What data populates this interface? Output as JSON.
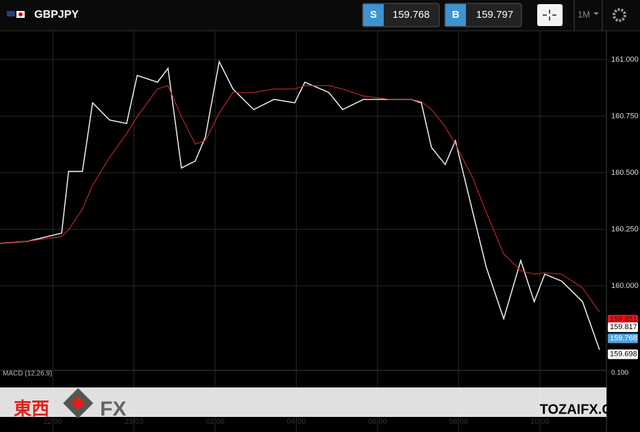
{
  "header": {
    "symbol": "GBPJPY",
    "sell_label": "S",
    "sell_price": "159.768",
    "buy_label": "B",
    "buy_price": "159.797",
    "timeframe": "1M"
  },
  "chart_data": {
    "type": "line",
    "x": [
      -1.3,
      -0.62,
      0.22,
      0.39,
      0.73,
      0.98,
      1.4,
      1.82,
      2.08,
      2.58,
      2.84,
      3.17,
      3.51,
      3.76,
      4.1,
      4.44,
      4.95,
      5.45,
      5.96,
      6.21,
      6.8,
      7.14,
      7.65,
      8.32,
      8.83,
      9.08,
      9.33,
      9.67,
      9.92,
      10.35,
      10.68,
      11.11,
      11.53,
      11.86,
      12.12,
      12.54,
      13.05,
      13.47
    ],
    "series": [
      {
        "name": "GBPJPY",
        "color": "#e8e8e8",
        "values": [
          160.188,
          160.197,
          160.233,
          160.506,
          160.506,
          160.809,
          160.733,
          160.718,
          160.93,
          160.9,
          160.961,
          160.521,
          160.552,
          160.658,
          160.991,
          160.87,
          160.779,
          160.824,
          160.809,
          160.9,
          160.855,
          160.779,
          160.824,
          160.824,
          160.824,
          160.809,
          160.612,
          160.536,
          160.642,
          160.324,
          160.082,
          159.855,
          160.112,
          159.93,
          160.052,
          160.021,
          159.93,
          159.718
        ]
      },
      {
        "name": "MA",
        "color": "#c0282a",
        "values": [
          160.188,
          160.197,
          160.218,
          160.248,
          160.339,
          160.445,
          160.567,
          160.673,
          160.748,
          160.87,
          160.885,
          160.748,
          160.627,
          160.642,
          160.764,
          160.855,
          160.855,
          160.87,
          160.87,
          160.885,
          160.885,
          160.87,
          160.839,
          160.824,
          160.824,
          160.815,
          160.779,
          160.703,
          160.627,
          160.476,
          160.324,
          160.142,
          160.067,
          160.052,
          160.058,
          160.052,
          159.991,
          159.885
        ]
      }
    ],
    "xlim": [
      -1.3,
      13.64
    ],
    "xticks": [
      {
        "value": 0,
        "label": "22:00"
      },
      {
        "value": 2,
        "label": "23/03"
      },
      {
        "value": 4,
        "label": "02:00"
      },
      {
        "value": 6,
        "label": "04:00"
      },
      {
        "value": 8,
        "label": "06:00"
      },
      {
        "value": 10,
        "label": "08:00"
      },
      {
        "value": 12,
        "label": "10:00"
      }
    ],
    "ylim": [
      159.627,
      161.127
    ],
    "yticks": [
      {
        "value": 161,
        "label": "161.000"
      },
      {
        "value": 160.75,
        "label": "160.750"
      },
      {
        "value": 160.5,
        "label": "160.500"
      },
      {
        "value": 160.25,
        "label": "160.250"
      },
      {
        "value": 160,
        "label": "160.000"
      }
    ],
    "grid": true,
    "price_tags": [
      {
        "value": 159.851,
        "color": "#e8141b"
      },
      {
        "value": 159.817,
        "color": "#ffffff"
      },
      {
        "value": 159.768,
        "color": "#4aa3df"
      },
      {
        "value": 159.698,
        "color": "#ffffff"
      }
    ]
  },
  "macd": {
    "label": "MACD (12,26,9)",
    "tick": "0.100"
  },
  "watermark": {
    "logo_cn": "東西",
    "logo_fx": "FX",
    "site": "TOZAIFX.COM"
  }
}
